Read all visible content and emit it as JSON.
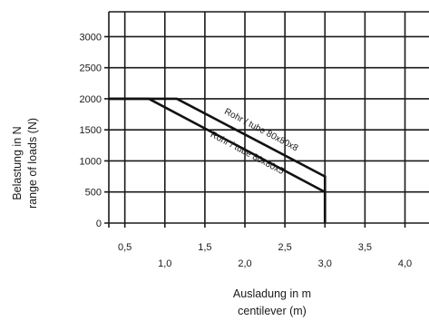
{
  "chart_data": {
    "type": "line",
    "xlabel": [
      "Ausladung in m",
      "centilever (m)"
    ],
    "ylabel": [
      "Belastung in N",
      "range of loads (N)"
    ],
    "xlim": [
      0.3,
      4.3
    ],
    "ylim": [
      0,
      3400
    ],
    "x_ticks_upper": [
      "0,5",
      "1,5",
      "2,5",
      "3,5"
    ],
    "x_ticks_upper_values": [
      0.5,
      1.5,
      2.5,
      3.5
    ],
    "x_ticks_lower": [
      "1,0",
      "2,0",
      "3,0",
      "4,0"
    ],
    "x_ticks_lower_values": [
      1.0,
      2.0,
      3.0,
      4.0
    ],
    "y_ticks": [
      "0",
      "500",
      "1000",
      "1500",
      "2000",
      "2500",
      "3000"
    ],
    "y_ticks_values": [
      0,
      500,
      1000,
      1500,
      2000,
      2500,
      3000
    ],
    "grid": true,
    "series": [
      {
        "name": "Rohr / tube 80x80x8",
        "x": [
          0.3,
          1.15,
          3.0,
          3.0
        ],
        "y": [
          2000,
          2000,
          750,
          0
        ]
      },
      {
        "name": "Rohr / tube 80x80x5",
        "x": [
          0.3,
          0.8,
          3.0,
          3.0
        ],
        "y": [
          2000,
          2000,
          500,
          0
        ]
      }
    ]
  }
}
